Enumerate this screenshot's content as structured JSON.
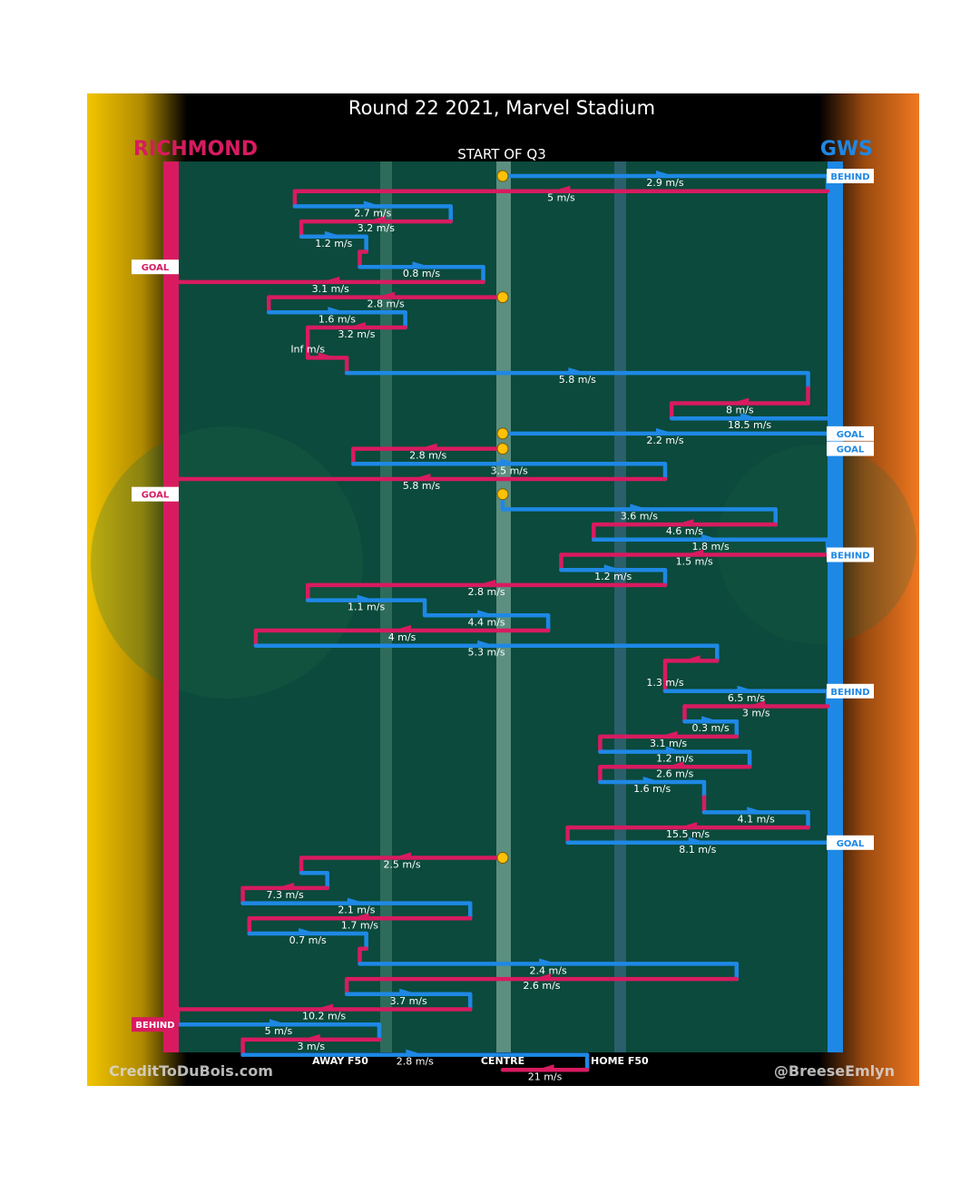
{
  "header": {
    "title": "Round 22 2021, Marvel Stadium",
    "home_team": "RICHMOND",
    "away_team": "GWS",
    "period": "START OF Q3"
  },
  "footer": {
    "credit_left": "CreditToDuBois.com",
    "credit_right": "@BreeseEmlyn"
  },
  "colors": {
    "richmond": "#d81b60",
    "gws": "#1e88e5",
    "field": "#0b4a3c",
    "ball_marker": "#ffc107",
    "left_gradient": "#f2c500",
    "right_gradient": "#f07820"
  },
  "chart_data": {
    "type": "line",
    "description_axes": "x = ground position from Richmond goal line (0) to GWS goal line (100); rows = successive chains in time order",
    "x_ticks": [
      {
        "label": "AWAY F50",
        "x": 25
      },
      {
        "label": "CENTRE",
        "x": 50
      },
      {
        "label": "HOME F50",
        "x": 68
      }
    ],
    "xlim": [
      0,
      100
    ],
    "outcomes": [
      {
        "label": "BEHIND",
        "team": "gws",
        "after_chain": 0
      },
      {
        "label": "GOAL",
        "team": "richmond",
        "after_chain": 6
      },
      {
        "label": "GOAL",
        "team": "gws",
        "after_chain": 17
      },
      {
        "label": "GOAL",
        "team": "gws",
        "after_chain": 18
      },
      {
        "label": "GOAL",
        "team": "richmond",
        "after_chain": 21
      },
      {
        "label": "BEHIND",
        "team": "gws",
        "after_chain": 25
      },
      {
        "label": "BEHIND",
        "team": "gws",
        "after_chain": 34
      },
      {
        "label": "GOAL",
        "team": "gws",
        "after_chain": 44
      },
      {
        "label": "BEHIND",
        "team": "richmond",
        "after_chain": 56
      }
    ],
    "chains": [
      {
        "team": "gws",
        "from": 50,
        "to": 100,
        "speed": "2.9 m/s"
      },
      {
        "team": "richmond",
        "from": 100,
        "to": 18,
        "speed": "5 m/s"
      },
      {
        "team": "gws",
        "from": 18,
        "to": 42,
        "speed": "2.7 m/s"
      },
      {
        "team": "richmond",
        "from": 42,
        "to": 19,
        "speed": "3.2 m/s"
      },
      {
        "team": "gws",
        "from": 19,
        "to": 29,
        "speed": "1.2 m/s"
      },
      {
        "team": "richmond",
        "from": 29,
        "to": 28,
        "speed": ""
      },
      {
        "team": "gws",
        "from": 28,
        "to": 47,
        "speed": "0.8 m/s"
      },
      {
        "team": "richmond",
        "from": 47,
        "to": 0,
        "speed": "3.1 m/s"
      },
      {
        "team": "richmond",
        "from": 50,
        "to": 14,
        "speed": "2.8 m/s"
      },
      {
        "team": "gws",
        "from": 14,
        "to": 35,
        "speed": "1.6 m/s"
      },
      {
        "team": "richmond",
        "from": 35,
        "to": 20,
        "speed": "3.2 m/s"
      },
      {
        "team": "richmond",
        "from": 20,
        "to": 20,
        "speed": "Inf m/s"
      },
      {
        "team": "richmond",
        "from": 20,
        "to": 26,
        "speed": ""
      },
      {
        "team": "gws",
        "from": 26,
        "to": 97,
        "speed": "5.8 m/s"
      },
      {
        "team": "richmond",
        "from": 97,
        "to": 97,
        "speed": ""
      },
      {
        "team": "richmond",
        "from": 97,
        "to": 76,
        "speed": "8 m/s"
      },
      {
        "team": "gws",
        "from": 76,
        "to": 100,
        "speed": "18.5 m/s"
      },
      {
        "team": "gws",
        "from": 50,
        "to": 100,
        "speed": "2.2 m/s"
      },
      {
        "team": "richmond",
        "from": 50,
        "to": 27,
        "speed": "2.8 m/s"
      },
      {
        "team": "gws",
        "from": 27,
        "to": 75,
        "speed": "3.5 m/s"
      },
      {
        "team": "richmond",
        "from": 75,
        "to": 0,
        "speed": "5.8 m/s"
      },
      {
        "team": "gws",
        "from": 50,
        "to": 50,
        "speed": ""
      },
      {
        "team": "gws",
        "from": 50,
        "to": 92,
        "speed": "3.6 m/s"
      },
      {
        "team": "richmond",
        "from": 92,
        "to": 64,
        "speed": "4.6 m/s"
      },
      {
        "team": "gws",
        "from": 64,
        "to": 100,
        "speed": "1.8 m/s"
      },
      {
        "team": "richmond",
        "from": 100,
        "to": 59,
        "speed": "1.5 m/s"
      },
      {
        "team": "gws",
        "from": 59,
        "to": 75,
        "speed": "1.2 m/s"
      },
      {
        "team": "richmond",
        "from": 75,
        "to": 20,
        "speed": "2.8 m/s"
      },
      {
        "team": "gws",
        "from": 20,
        "to": 38,
        "speed": "1.1 m/s"
      },
      {
        "team": "gws",
        "from": 38,
        "to": 57,
        "speed": "4.4 m/s"
      },
      {
        "team": "richmond",
        "from": 57,
        "to": 12,
        "speed": "4 m/s"
      },
      {
        "team": "gws",
        "from": 12,
        "to": 83,
        "speed": "5.3 m/s"
      },
      {
        "team": "richmond",
        "from": 83,
        "to": 75,
        "speed": ""
      },
      {
        "team": "richmond",
        "from": 75,
        "to": 75,
        "speed": "1.3 m/s"
      },
      {
        "team": "gws",
        "from": 75,
        "to": 100,
        "speed": "6.5 m/s"
      },
      {
        "team": "richmond",
        "from": 100,
        "to": 78,
        "speed": "3 m/s"
      },
      {
        "team": "gws",
        "from": 78,
        "to": 86,
        "speed": "0.3 m/s"
      },
      {
        "team": "richmond",
        "from": 86,
        "to": 65,
        "speed": "3.1 m/s"
      },
      {
        "team": "gws",
        "from": 65,
        "to": 88,
        "speed": "1.2 m/s"
      },
      {
        "team": "richmond",
        "from": 88,
        "to": 65,
        "speed": "2.6 m/s"
      },
      {
        "team": "gws",
        "from": 65,
        "to": 81,
        "speed": "1.6 m/s"
      },
      {
        "team": "richmond",
        "from": 81,
        "to": 81,
        "speed": ""
      },
      {
        "team": "gws",
        "from": 81,
        "to": 97,
        "speed": "4.1 m/s"
      },
      {
        "team": "richmond",
        "from": 97,
        "to": 60,
        "speed": "15.5 m/s"
      },
      {
        "team": "gws",
        "from": 60,
        "to": 100,
        "speed": "8.1 m/s"
      },
      {
        "team": "richmond",
        "from": 50,
        "to": 19,
        "speed": "2.5 m/s"
      },
      {
        "team": "gws",
        "from": 19,
        "to": 23,
        "speed": ""
      },
      {
        "team": "richmond",
        "from": 23,
        "to": 10,
        "speed": "7.3 m/s"
      },
      {
        "team": "gws",
        "from": 10,
        "to": 45,
        "speed": "2.1 m/s"
      },
      {
        "team": "richmond",
        "from": 45,
        "to": 11,
        "speed": "1.7 m/s"
      },
      {
        "team": "gws",
        "from": 11,
        "to": 29,
        "speed": "0.7 m/s"
      },
      {
        "team": "richmond",
        "from": 29,
        "to": 28,
        "speed": ""
      },
      {
        "team": "gws",
        "from": 28,
        "to": 86,
        "speed": "2.4 m/s"
      },
      {
        "team": "richmond",
        "from": 86,
        "to": 26,
        "speed": "2.6 m/s"
      },
      {
        "team": "gws",
        "from": 26,
        "to": 45,
        "speed": "3.7 m/s"
      },
      {
        "team": "richmond",
        "from": 45,
        "to": 0,
        "speed": "10.2 m/s"
      },
      {
        "team": "gws",
        "from": 0,
        "to": 31,
        "speed": "5 m/s"
      },
      {
        "team": "richmond",
        "from": 31,
        "to": 10,
        "speed": "3 m/s"
      },
      {
        "team": "gws",
        "from": 10,
        "to": 63,
        "speed": "2.8 m/s"
      },
      {
        "team": "richmond",
        "from": 63,
        "to": 50,
        "speed": "21 m/s"
      }
    ],
    "title": "Round 22 2021, Marvel Stadium",
    "grid": false,
    "legend": "none"
  }
}
